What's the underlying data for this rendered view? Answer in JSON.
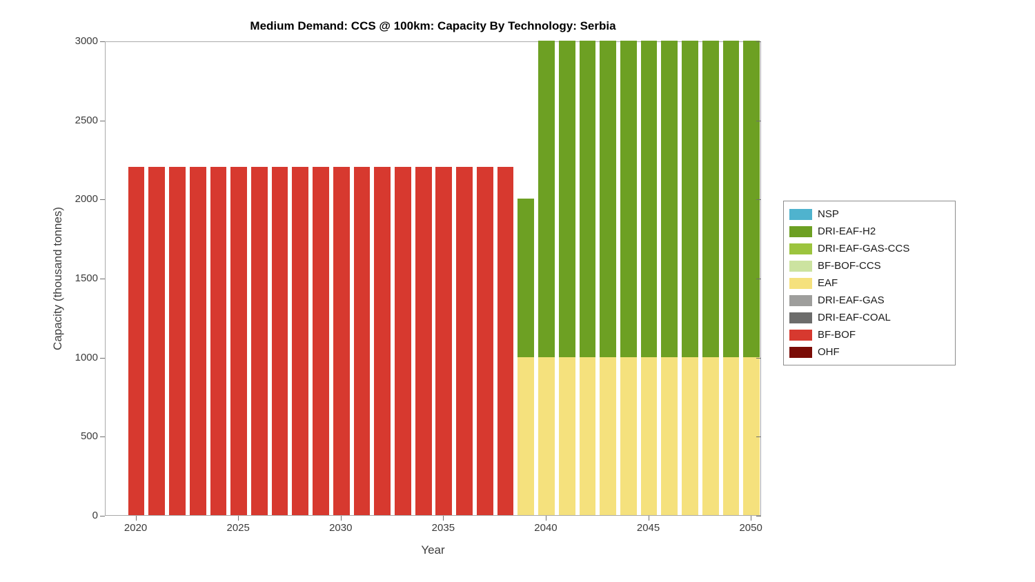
{
  "chart_data": {
    "type": "bar",
    "stacked": true,
    "title": "Medium Demand: CCS @ 100km: Capacity By Technology: Serbia",
    "xlabel": "Year",
    "ylabel": "Capacity (thousand tonnes)",
    "xlim": [
      2018.5,
      2050.5
    ],
    "ylim": [
      0,
      3000
    ],
    "yticks": [
      0,
      500,
      1000,
      1500,
      2000,
      2500,
      3000
    ],
    "xticks": [
      2020,
      2025,
      2030,
      2035,
      2040,
      2045,
      2050
    ],
    "bar_width_years": 0.8,
    "grid": false,
    "years": [
      2020,
      2021,
      2022,
      2023,
      2024,
      2025,
      2026,
      2027,
      2028,
      2029,
      2030,
      2031,
      2032,
      2033,
      2034,
      2035,
      2036,
      2037,
      2038,
      2039,
      2040,
      2041,
      2042,
      2043,
      2044,
      2045,
      2046,
      2047,
      2048,
      2049,
      2050
    ],
    "series": [
      {
        "name": "EAF",
        "color": "#F5E17D",
        "values": [
          0,
          0,
          0,
          0,
          0,
          0,
          0,
          0,
          0,
          0,
          0,
          0,
          0,
          0,
          0,
          0,
          0,
          0,
          0,
          1000,
          1000,
          1000,
          1000,
          1000,
          1000,
          1000,
          1000,
          1000,
          1000,
          1000,
          1000
        ]
      },
      {
        "name": "BF-BOF",
        "color": "#D7392F",
        "values": [
          2200,
          2200,
          2200,
          2200,
          2200,
          2200,
          2200,
          2200,
          2200,
          2200,
          2200,
          2200,
          2200,
          2200,
          2200,
          2200,
          2200,
          2200,
          2200,
          0,
          0,
          0,
          0,
          0,
          0,
          0,
          0,
          0,
          0,
          0,
          0
        ]
      },
      {
        "name": "DRI-EAF-H2",
        "color": "#6DA023",
        "values": [
          0,
          0,
          0,
          0,
          0,
          0,
          0,
          0,
          0,
          0,
          0,
          0,
          0,
          0,
          0,
          0,
          0,
          0,
          0,
          1000,
          2000,
          2000,
          2000,
          2000,
          2000,
          2000,
          2000,
          2000,
          2000,
          2000,
          2000
        ]
      }
    ],
    "legend": {
      "position": "right",
      "items": [
        {
          "label": "NSP",
          "color": "#4FB3CE"
        },
        {
          "label": "DRI-EAF-H2",
          "color": "#6DA023"
        },
        {
          "label": "DRI-EAF-GAS-CCS",
          "color": "#9CC43E"
        },
        {
          "label": "BF-BOF-CCS",
          "color": "#CCE3A0"
        },
        {
          "label": "EAF",
          "color": "#F5E17D"
        },
        {
          "label": "DRI-EAF-GAS",
          "color": "#9E9E9C"
        },
        {
          "label": "DRI-EAF-COAL",
          "color": "#6C6C6B"
        },
        {
          "label": "BF-BOF",
          "color": "#D7392F"
        },
        {
          "label": "OHF",
          "color": "#7A0C06"
        }
      ]
    }
  }
}
